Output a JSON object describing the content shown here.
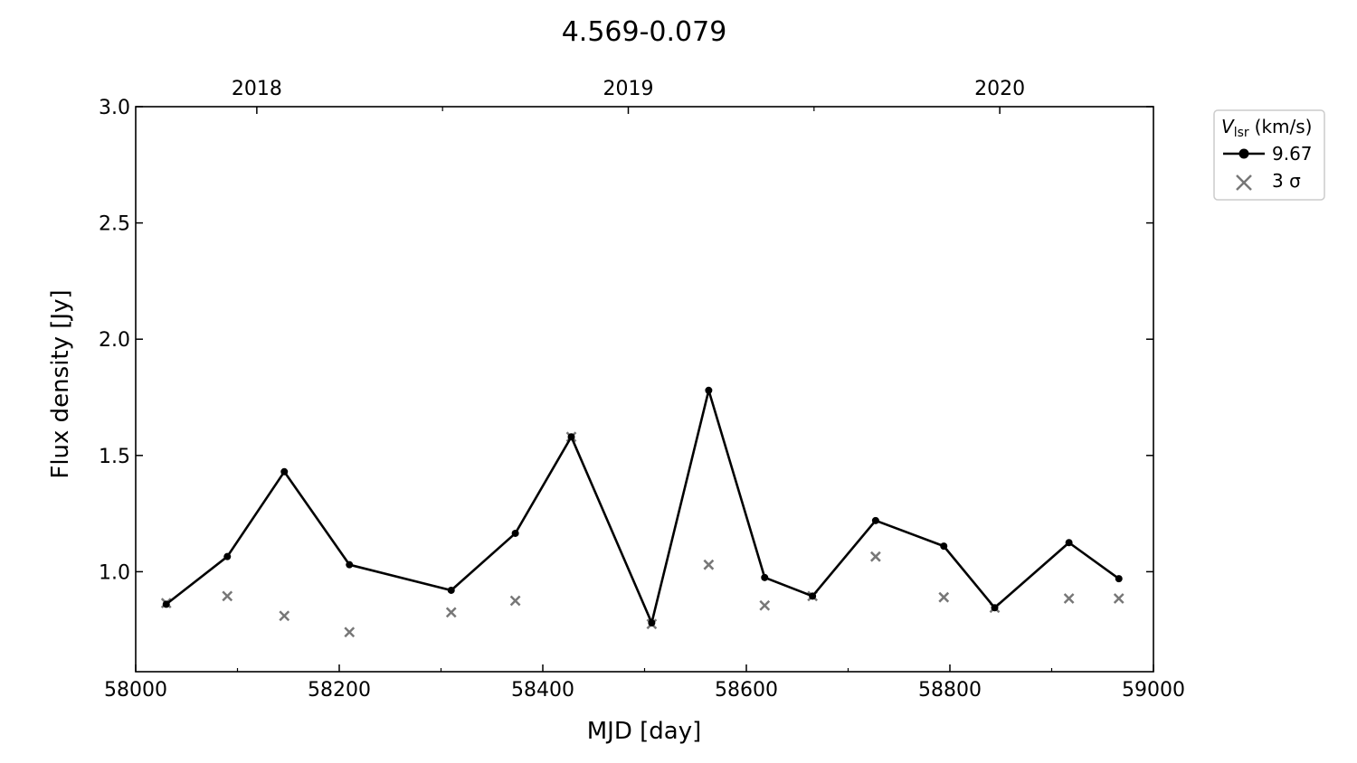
{
  "chart_data": {
    "type": "line",
    "title": "4.569-0.079",
    "xlabel": "MJD [day]",
    "ylabel": "Flux density [Jy]",
    "xlim": [
      58000,
      59000
    ],
    "ylim": [
      0.57,
      3.0
    ],
    "x_ticks": [
      "58000",
      "58200",
      "58400",
      "58600",
      "58800",
      "59000"
    ],
    "y_ticks": [
      "1.0",
      "1.5",
      "2.0",
      "2.5",
      "3.0"
    ],
    "top_axis": {
      "ticks": [
        {
          "mjd": 58119,
          "label": "2018"
        },
        {
          "mjd": 58484,
          "label": "2019"
        },
        {
          "mjd": 58849,
          "label": "2020"
        }
      ]
    },
    "legend": {
      "title_main": "V",
      "title_sub": "lsr",
      "title_unit": "(km/s)",
      "placement": "outside-top-right",
      "entries": [
        {
          "label": "9.67",
          "marker": "circle-line",
          "color": "#000000"
        },
        {
          "label": "3 σ",
          "marker": "x",
          "color": "#777777"
        }
      ]
    },
    "series": [
      {
        "name": "9.67",
        "color": "#000000",
        "x": [
          58030,
          58090,
          58146,
          58210,
          58310,
          58373,
          58428,
          58507,
          58563,
          58618,
          58665,
          58727,
          58794,
          58844,
          58917,
          58966
        ],
        "y": [
          0.86,
          1.065,
          1.43,
          1.03,
          0.92,
          1.165,
          1.58,
          0.78,
          1.78,
          0.975,
          0.895,
          1.22,
          1.11,
          0.845,
          1.125,
          0.97
        ]
      },
      {
        "name": "3 σ",
        "color": "#777777",
        "x": [
          58030,
          58090,
          58146,
          58210,
          58310,
          58373,
          58428,
          58507,
          58563,
          58618,
          58665,
          58727,
          58794,
          58844,
          58917,
          58966
        ],
        "y": [
          0.865,
          0.895,
          0.81,
          0.74,
          0.825,
          0.875,
          1.58,
          0.775,
          1.03,
          0.855,
          0.895,
          1.065,
          0.89,
          0.845,
          0.885,
          0.885
        ]
      }
    ]
  }
}
